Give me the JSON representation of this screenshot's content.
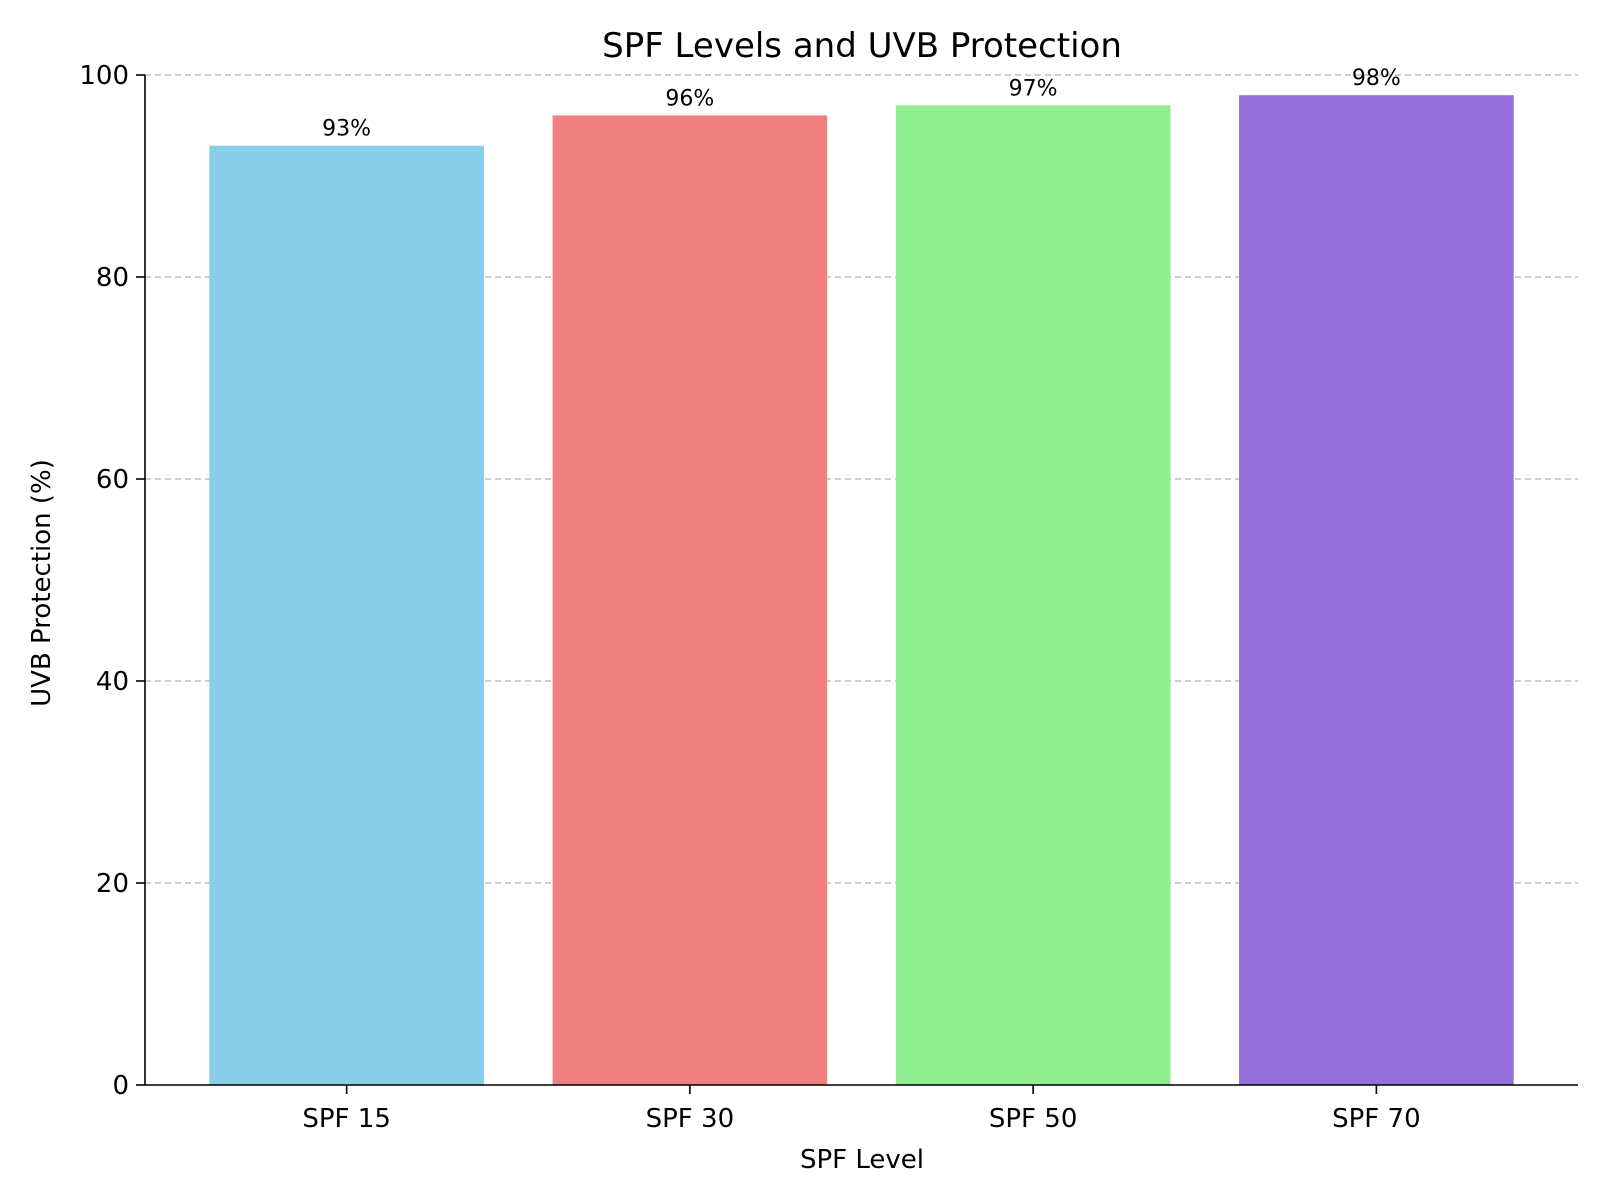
{
  "chart_data": {
    "type": "bar",
    "title": "SPF Levels and UVB Protection",
    "xlabel": "SPF Level",
    "ylabel": "UVB Protection (%)",
    "categories": [
      "SPF 15",
      "SPF 30",
      "SPF 50",
      "SPF 70"
    ],
    "values": [
      93,
      96,
      97,
      98
    ],
    "data_labels": [
      "93%",
      "96%",
      "97%",
      "98%"
    ],
    "colors": [
      "#87CEEB",
      "#F08080",
      "#90EE90",
      "#9370DB"
    ],
    "ylim": [
      0,
      100
    ],
    "yticks": [
      0,
      20,
      40,
      60,
      80,
      100
    ],
    "grid": "y-dashed",
    "legend": "none"
  }
}
